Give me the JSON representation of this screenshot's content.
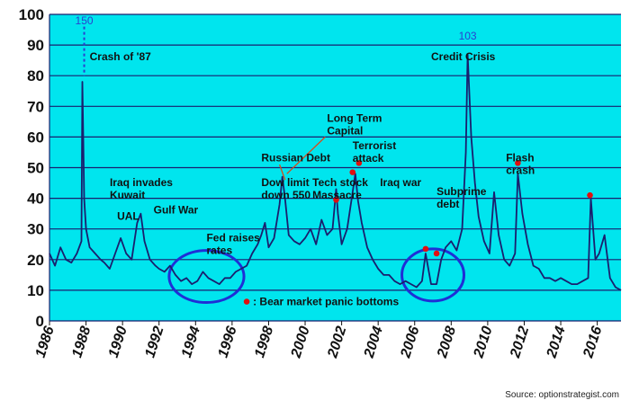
{
  "chart_data": {
    "type": "line",
    "title": "",
    "xlabel": "",
    "ylabel": "",
    "xlim": [
      1986,
      2017.3
    ],
    "ylim": [
      0,
      100
    ],
    "grid": "horizontal",
    "colors": {
      "background": "#00e5ee",
      "line": "#1a1f6e",
      "circle": "#1f2fd6",
      "marker": "#e01010",
      "callout": "#d94a1a",
      "peak_label": "#2a3fd0"
    },
    "y_ticks": [
      "0",
      "10",
      "20",
      "30",
      "40",
      "50",
      "60",
      "70",
      "80",
      "90",
      "100"
    ],
    "x_ticks": [
      "1986",
      "1988",
      "1990",
      "1992",
      "1994",
      "1996",
      "1998",
      "2000",
      "2002",
      "2004",
      "2006",
      "2008",
      "2010",
      "2012",
      "2014",
      "2016"
    ],
    "series": [
      {
        "x": [
          1986.0,
          1986.3,
          1986.6,
          1986.9,
          1987.2,
          1987.5,
          1987.75,
          1987.8,
          1987.85,
          1987.9,
          1988.0,
          1988.2,
          1988.5,
          1988.8,
          1989.0,
          1989.3,
          1989.6,
          1989.9,
          1990.2,
          1990.5,
          1990.8,
          1991.0,
          1991.2,
          1991.5,
          1991.8,
          1992.0,
          1992.3,
          1992.6,
          1992.9,
          1993.2,
          1993.5,
          1993.8,
          1994.1,
          1994.4,
          1994.7,
          1995.0,
          1995.3,
          1995.6,
          1995.9,
          1996.2,
          1996.5,
          1996.8,
          1997.1,
          1997.4,
          1997.6,
          1997.8,
          1998.0,
          1998.3,
          1998.6,
          1998.75,
          1998.9,
          1999.1,
          1999.4,
          1999.7,
          2000.0,
          2000.3,
          2000.6,
          2000.9,
          2001.2,
          2001.5,
          2001.7,
          2001.8,
          2002.0,
          2002.3,
          2002.55,
          2002.75,
          2002.9,
          2003.1,
          2003.4,
          2003.7,
          2004.0,
          2004.3,
          2004.6,
          2004.9,
          2005.2,
          2005.5,
          2005.8,
          2006.1,
          2006.4,
          2006.6,
          2006.9,
          2007.2,
          2007.45,
          2007.7,
          2008.0,
          2008.3,
          2008.6,
          2008.8,
          2008.9,
          2009.1,
          2009.3,
          2009.5,
          2009.8,
          2010.1,
          2010.35,
          2010.6,
          2010.9,
          2011.2,
          2011.5,
          2011.65,
          2011.9,
          2012.2,
          2012.5,
          2012.8,
          2013.1,
          2013.4,
          2013.7,
          2014.0,
          2014.3,
          2014.6,
          2014.9,
          2015.2,
          2015.5,
          2015.65,
          2015.9,
          2016.1,
          2016.4,
          2016.7,
          2017.0,
          2017.3
        ],
        "y": [
          22,
          18,
          24,
          20,
          19,
          22,
          26,
          78,
          60,
          40,
          30,
          24,
          22,
          20,
          19,
          17,
          22,
          27,
          22,
          20,
          32,
          35,
          26,
          20,
          18,
          17,
          16,
          18,
          15,
          13,
          14,
          12,
          13,
          16,
          14,
          13,
          12,
          14,
          14,
          16,
          17,
          18,
          22,
          25,
          28,
          32,
          24,
          27,
          38,
          47,
          40,
          28,
          26,
          25,
          27,
          30,
          25,
          33,
          28,
          30,
          43,
          35,
          25,
          30,
          40,
          48,
          39,
          32,
          24,
          20,
          17,
          15,
          15,
          13,
          12,
          13,
          12,
          11,
          13,
          22,
          12,
          12,
          20,
          24,
          26,
          23,
          30,
          55,
          87,
          60,
          45,
          34,
          26,
          22,
          42,
          28,
          20,
          18,
          22,
          48,
          35,
          25,
          18,
          17,
          14,
          14,
          13,
          14,
          13,
          12,
          12,
          13,
          14,
          40,
          20,
          22,
          28,
          14,
          11,
          10
        ]
      }
    ],
    "peak_labels": [
      {
        "text": "150",
        "x": 1987.9,
        "y": 98
      },
      {
        "text": "103",
        "x": 2008.9,
        "y": 93
      }
    ],
    "annotations": [
      {
        "lines": [
          "Crash of '87"
        ],
        "x": 1988.2,
        "y": 85
      },
      {
        "lines": [
          "Iraq invades",
          "Kuwait"
        ],
        "x": 1989.3,
        "y": 44
      },
      {
        "lines": [
          "UAL"
        ],
        "x": 1989.7,
        "y": 33
      },
      {
        "lines": [
          "Gulf War"
        ],
        "x": 1991.7,
        "y": 35
      },
      {
        "lines": [
          "Fed raises",
          "rates"
        ],
        "x": 1994.6,
        "y": 26
      },
      {
        "lines": [
          "Dow limit",
          "down 550"
        ],
        "x": 1997.6,
        "y": 44
      },
      {
        "lines": [
          "Russian Debt"
        ],
        "x": 1997.6,
        "y": 52
      },
      {
        "lines": [
          "Long Term",
          "Capital"
        ],
        "x": 2001.2,
        "y": 65
      },
      {
        "lines": [
          "Tech stock",
          "Massacre"
        ],
        "x": 2000.4,
        "y": 44
      },
      {
        "lines": [
          "Terrorist",
          "attack"
        ],
        "x": 2002.6,
        "y": 56
      },
      {
        "lines": [
          "Iraq war"
        ],
        "x": 2004.1,
        "y": 44
      },
      {
        "lines": [
          "Subprime",
          "debt"
        ],
        "x": 2007.2,
        "y": 41
      },
      {
        "lines": [
          "Credit Crisis"
        ],
        "x": 2006.9,
        "y": 85
      },
      {
        "lines": [
          "Flash",
          "crash"
        ],
        "x": 2011.0,
        "y": 52
      }
    ],
    "markers": [
      {
        "x": 2001.7,
        "y": 39.5
      },
      {
        "x": 2002.6,
        "y": 48.5
      },
      {
        "x": 2002.95,
        "y": 51.5
      },
      {
        "x": 2006.6,
        "y": 23.5
      },
      {
        "x": 2007.2,
        "y": 22
      },
      {
        "x": 2011.65,
        "y": 51.5
      },
      {
        "x": 2015.6,
        "y": 41
      }
    ],
    "circles": [
      {
        "cx": 1994.6,
        "cy": 14.5,
        "rx": 2.05,
        "ry": 8.5
      },
      {
        "cx": 2007.0,
        "cy": 15.0,
        "rx": 1.7,
        "ry": 8.5
      }
    ],
    "callouts": [
      {
        "from": [
          1998.6,
          51
        ],
        "to": [
          1998.9,
          46
        ]
      },
      {
        "from": [
          2001.1,
          60
        ],
        "to": [
          1999.0,
          48
        ]
      }
    ],
    "legend": {
      "text": ": Bear market panic bottoms",
      "marker_x": 1996.8,
      "y": 6
    },
    "source": "Source: optionstrategist.com"
  }
}
